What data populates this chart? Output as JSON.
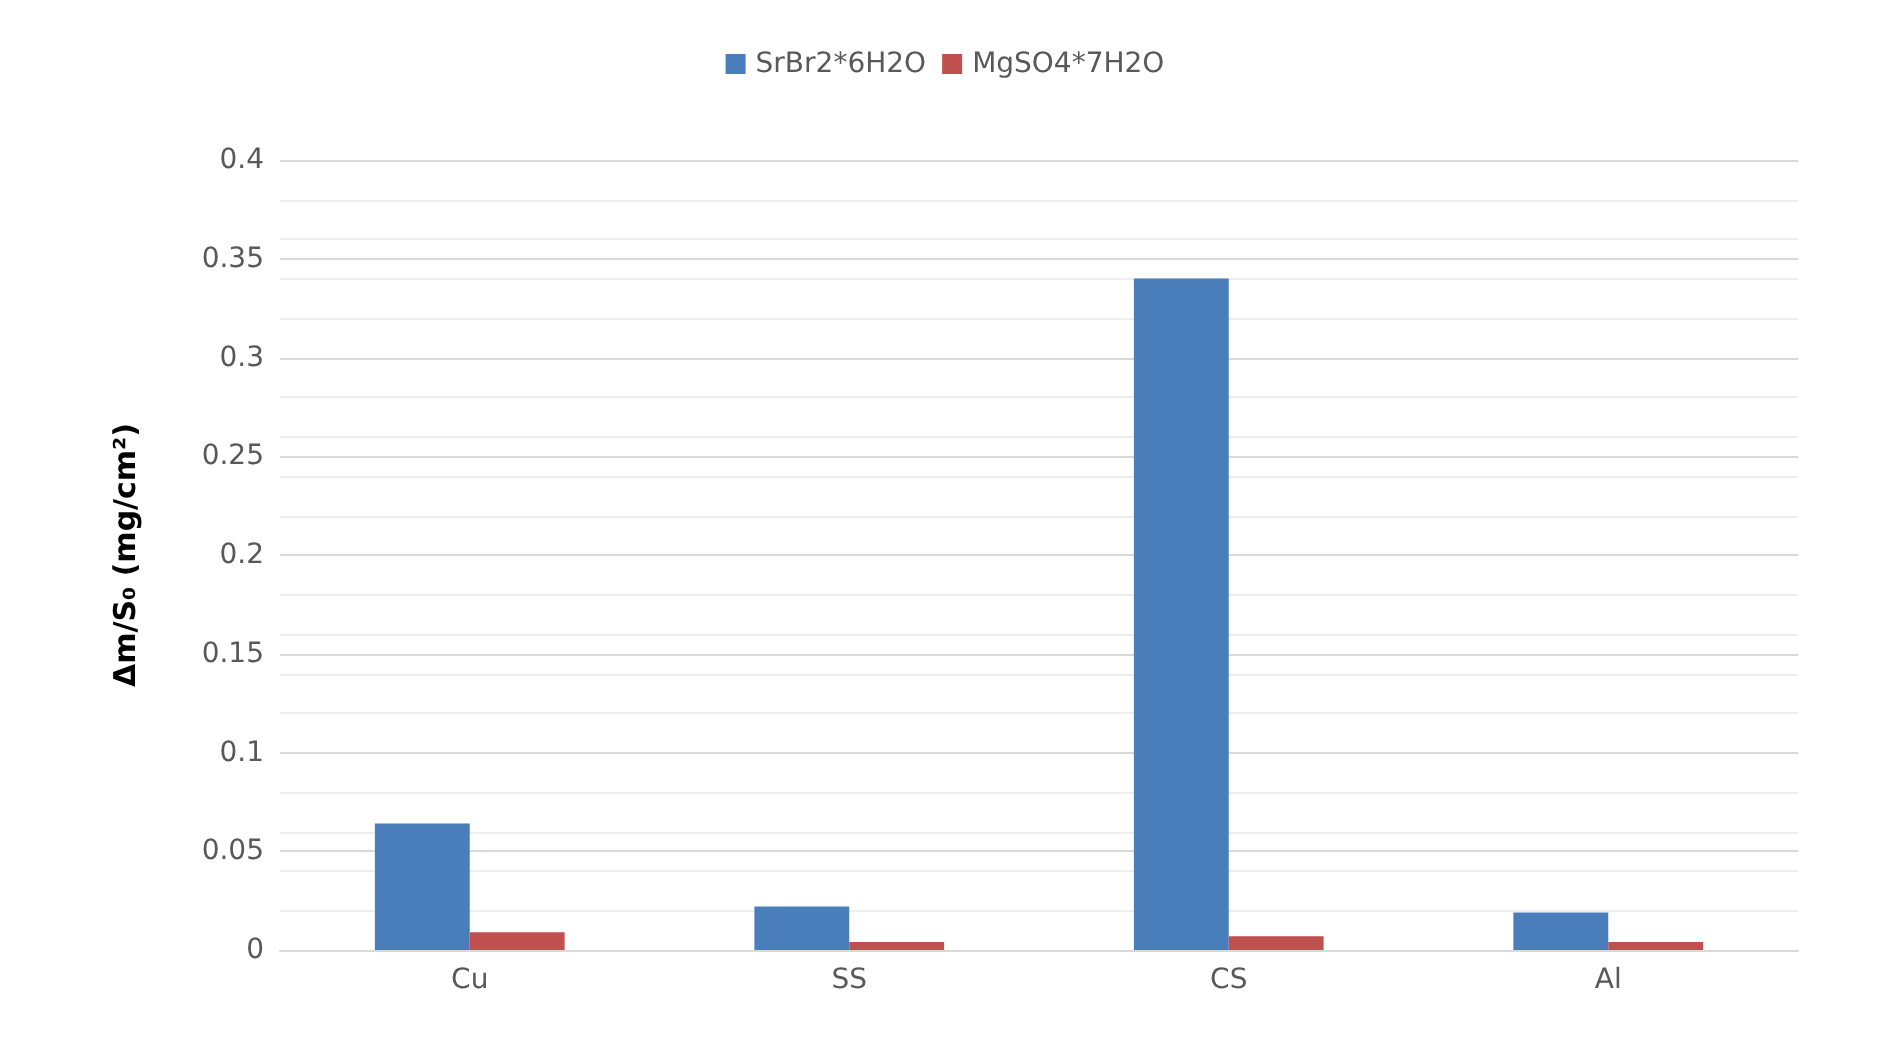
{
  "chart_data": {
    "type": "bar",
    "ylabel": "Δm/S₀ (mg/cm²)",
    "categories": [
      "Cu",
      "SS",
      "CS",
      "Al"
    ],
    "series": [
      {
        "name": "SrBr2*6H2O",
        "color": "#4a7ebb",
        "values": [
          0.064,
          0.022,
          0.34,
          0.019
        ]
      },
      {
        "name": "MgSO4*7H2O",
        "color": "#c0504d",
        "values": [
          0.009,
          0.004,
          0.007,
          0.004
        ]
      }
    ],
    "ylim": [
      0,
      0.4
    ],
    "yticks": [
      0,
      0.05,
      0.1,
      0.15,
      0.2,
      0.25,
      0.3,
      0.35,
      0.4
    ],
    "grid": "y",
    "legend": "top"
  }
}
